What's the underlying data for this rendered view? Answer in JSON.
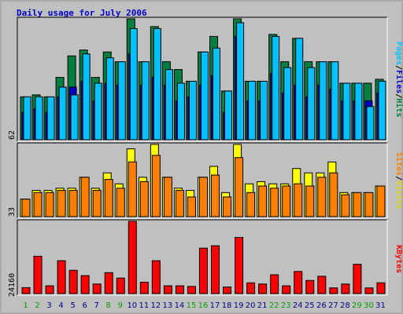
{
  "chart_data": {
    "type": "bar",
    "title": "Daily usage for July 2006",
    "categories": [
      "1",
      "2",
      "3",
      "4",
      "5",
      "6",
      "7",
      "8",
      "9",
      "10",
      "11",
      "12",
      "13",
      "14",
      "15",
      "16",
      "17",
      "18",
      "19",
      "20",
      "21",
      "22",
      "23",
      "24",
      "25",
      "26",
      "27",
      "28",
      "29",
      "30",
      "31"
    ],
    "weekend_days": [
      "1",
      "2",
      "8",
      "9",
      "15",
      "16",
      "22",
      "23",
      "29",
      "30"
    ],
    "panels": [
      {
        "id": "hits",
        "ymax_label": "62",
        "ylim": [
          0,
          62
        ],
        "series": [
          {
            "name": "Hits",
            "color": "#008040",
            "values": [
              22,
              23,
              22,
              32,
              43,
              46,
              32,
              45,
              40,
              62,
              40,
              58,
              40,
              36,
              30,
              45,
              53,
              25,
              62,
              30,
              30,
              54,
              40,
              52,
              40,
              40,
              40,
              29,
              29,
              29,
              31
            ]
          },
          {
            "name": "Files",
            "color": "#0000c8",
            "values": [
              14,
              16,
              14,
              22,
              27,
              30,
              20,
              29,
              28,
              44,
              28,
              32,
              28,
              20,
              22,
              28,
              33,
              14,
              53,
              20,
              20,
              34,
              24,
              28,
              22,
              28,
              26,
              20,
              20,
              20,
              24
            ]
          },
          {
            "name": "Pages",
            "color": "#00c0ff",
            "values": [
              22,
              22,
              22,
              27,
              23,
              44,
              29,
              42,
              40,
              57,
              40,
              57,
              36,
              29,
              30,
              45,
              47,
              25,
              60,
              30,
              30,
              53,
              37,
              52,
              37,
              40,
              40,
              29,
              29,
              17,
              30
            ]
          }
        ]
      },
      {
        "id": "visits",
        "ymax_label": "33",
        "ylim": [
          0,
          33
        ],
        "series": [
          {
            "name": "Visits",
            "color": "#ffff00",
            "values": [
              8,
              12,
              12,
              13,
              13,
              18,
              13,
              20,
              15,
              31,
              18,
              33,
              18,
              13,
              12,
              18,
              23,
              11,
              33,
              15,
              16,
              15,
              15,
              22,
              20,
              20,
              25,
              11,
              11,
              11,
              14
            ]
          },
          {
            "name": "Sites",
            "color": "#ff8000",
            "values": [
              8,
              11,
              11,
              12,
              12,
              18,
              12,
              17,
              13,
              25,
              16,
              28,
              18,
              12,
              9,
              18,
              19,
              9,
              27,
              11,
              14,
              13,
              14,
              15,
              14,
              18,
              20,
              10,
              11,
              11,
              14
            ]
          }
        ]
      },
      {
        "id": "kbytes",
        "ymax_label": "24160",
        "ylim": [
          0,
          24160
        ],
        "series": [
          {
            "name": "KBytes",
            "color": "#ff0000",
            "values": [
              2000,
              12500,
              2600,
              11000,
              7800,
              6000,
              3200,
              7000,
              5200,
              24160,
              3800,
              11000,
              2600,
              2600,
              2400,
              15200,
              16000,
              2200,
              18800,
              3600,
              3200,
              6300,
              2600,
              7400,
              4400,
              5800,
              1900,
              3200,
              9800,
              1900,
              3600
            ]
          }
        ]
      }
    ],
    "right_labels": [
      {
        "parts": [
          {
            "text": "Pages",
            "color": "#00c0ff"
          },
          {
            "text": "/",
            "color": "#000000"
          },
          {
            "text": "Files",
            "color": "#0000c8"
          },
          {
            "text": "/",
            "color": "#000000"
          },
          {
            "text": "Hits",
            "color": "#008040"
          }
        ]
      },
      {
        "parts": [
          {
            "text": "Sites",
            "color": "#ff8000"
          },
          {
            "text": "/",
            "color": "#000000"
          },
          {
            "text": "Visits",
            "color": "#d8d800"
          }
        ]
      },
      {
        "parts": [
          {
            "text": "KBytes",
            "color": "#ff0000"
          }
        ]
      }
    ],
    "colors": {
      "background": "#c0c0c0",
      "weekday": "#00008c",
      "weekend": "#00a000"
    }
  }
}
